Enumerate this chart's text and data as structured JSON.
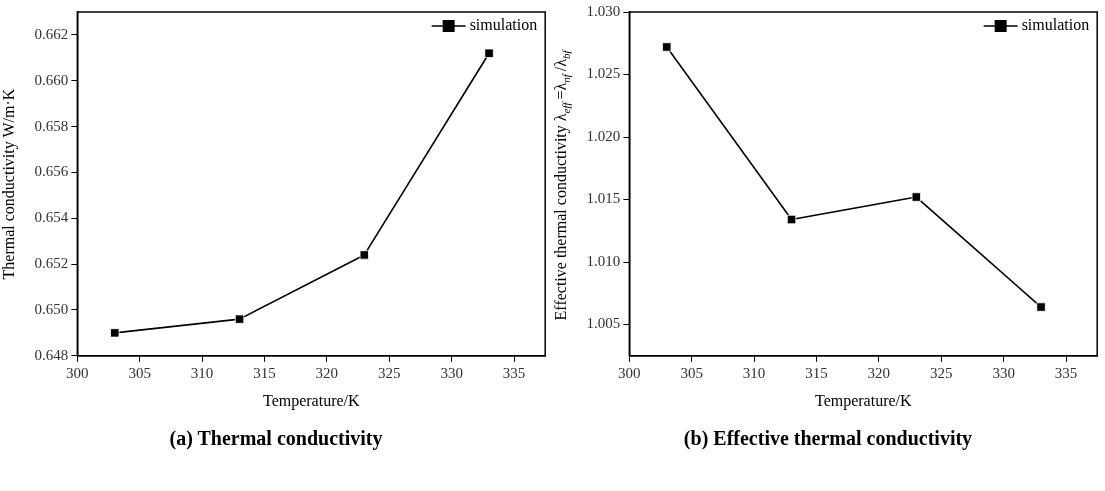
{
  "chart_data": [
    {
      "type": "line",
      "title": "(a) Thermal conductivity",
      "xlabel": "Temperature/K",
      "ylabel": "Thermal conductivity W/m·K",
      "x": [
        303,
        313,
        323,
        333
      ],
      "series": [
        {
          "name": "simulation",
          "color": "#000000",
          "values": [
            0.649,
            0.6496,
            0.6524,
            0.6612
          ]
        }
      ],
      "xlim": [
        300,
        337.5
      ],
      "xticks": [
        300,
        305,
        310,
        315,
        320,
        325,
        330,
        335
      ],
      "ylim": [
        0.648,
        0.663
      ],
      "yticks": [
        0.648,
        {
          "value": 0.65,
          "label": "0.650"
        },
        0.652,
        0.654,
        0.656,
        0.658,
        {
          "value": 0.66,
          "label": "0.660"
        },
        0.662
      ],
      "grid": false,
      "legend": "top right",
      "marker": "square",
      "line_style": "solid"
    },
    {
      "type": "line",
      "title": "(b) Effective thermal conductivity",
      "xlabel": "Temperature/K",
      "ylabel": "Effective thermal conductivity λ$_{eff}$=λ$_{nf}$/λ$_{bf}$",
      "x": [
        303,
        313,
        323,
        333
      ],
      "series": [
        {
          "name": "simulation",
          "color": "#000000",
          "values": [
            1.0272,
            1.0134,
            1.0152,
            1.0064
          ]
        }
      ],
      "xlim": [
        300,
        337.5
      ],
      "xticks": [
        300,
        305,
        310,
        315,
        320,
        325,
        330,
        335
      ],
      "ylim": [
        1.0025,
        1.03
      ],
      "yticks": [
        1.005,
        {
          "value": 1.01,
          "label": "1.010"
        },
        1.015,
        {
          "value": 1.02,
          "label": "1.020"
        },
        1.025,
        {
          "value": 1.03,
          "label": "1.030"
        }
      ],
      "grid": false,
      "legend": "top right",
      "marker": "square",
      "line_style": "solid"
    }
  ]
}
